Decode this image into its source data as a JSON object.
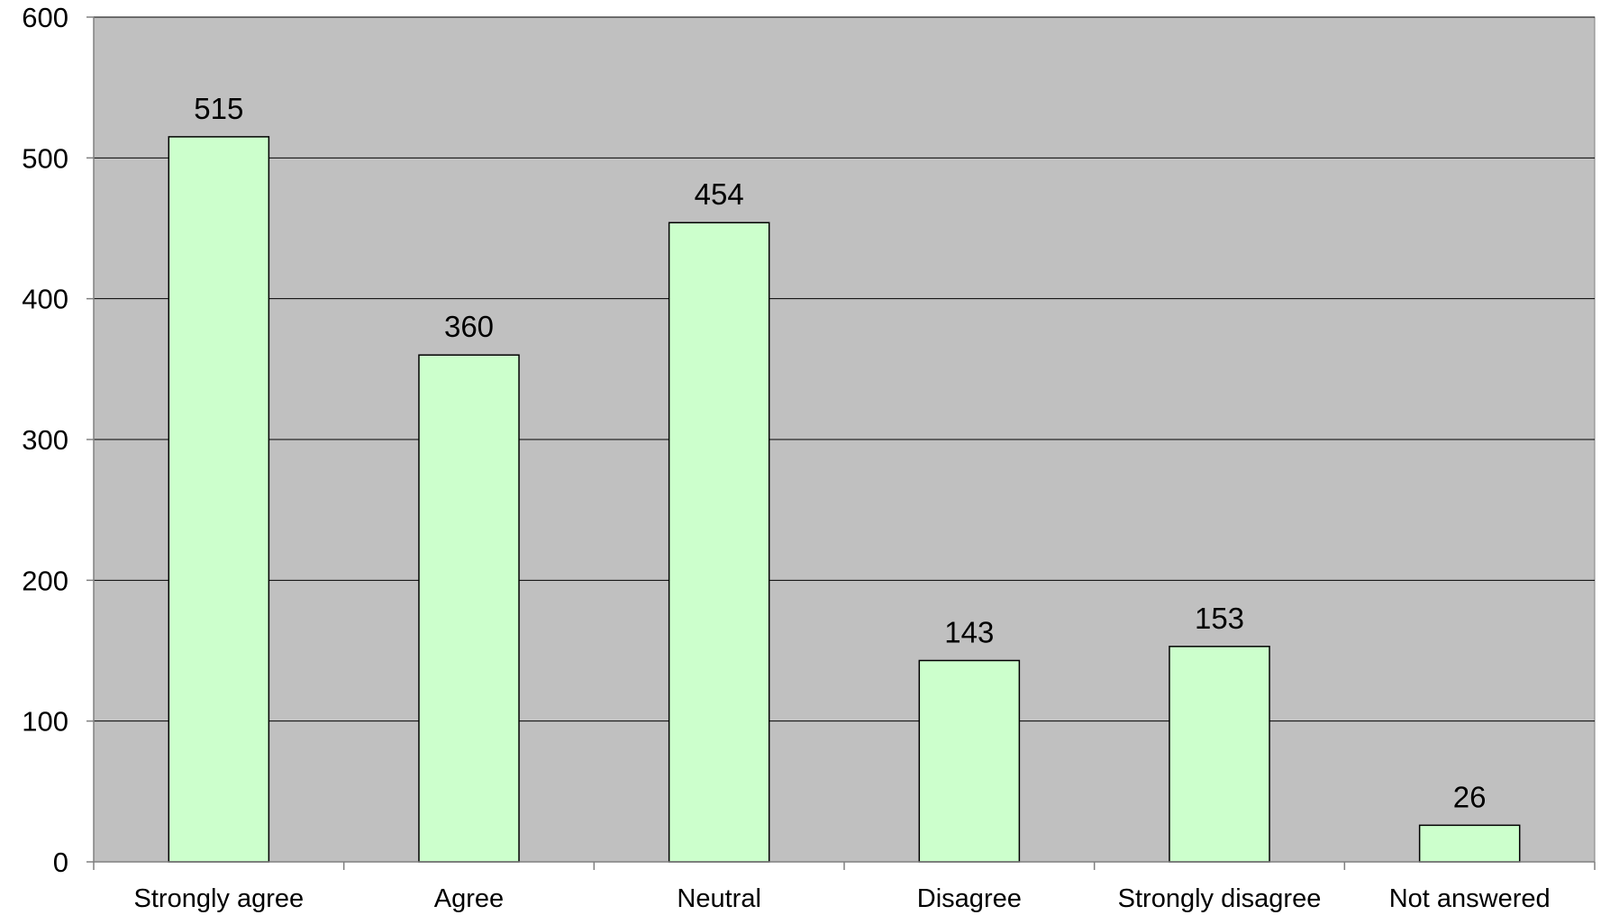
{
  "chart_data": {
    "type": "bar",
    "title": "",
    "xlabel": "",
    "ylabel": "",
    "categories": [
      "Strongly agree",
      "Agree",
      "Neutral",
      "Disagree",
      "Strongly disagree",
      "Not answered"
    ],
    "values": [
      515,
      360,
      454,
      143,
      153,
      26
    ],
    "data_labels": [
      "515",
      "360",
      "454",
      "143",
      "153",
      "26"
    ],
    "ylim": [
      0,
      600
    ],
    "yticks": [
      0,
      100,
      200,
      300,
      400,
      500,
      600
    ],
    "ytick_labels": [
      "0",
      "100",
      "200",
      "300",
      "400",
      "500",
      "600"
    ],
    "grid": true,
    "legend": "none",
    "colors": {
      "plot_background": "#c0c0c0",
      "bar_fill": "#ccffcc",
      "bar_stroke": "#000000",
      "gridline": "#000000",
      "axis": "#808080"
    }
  }
}
